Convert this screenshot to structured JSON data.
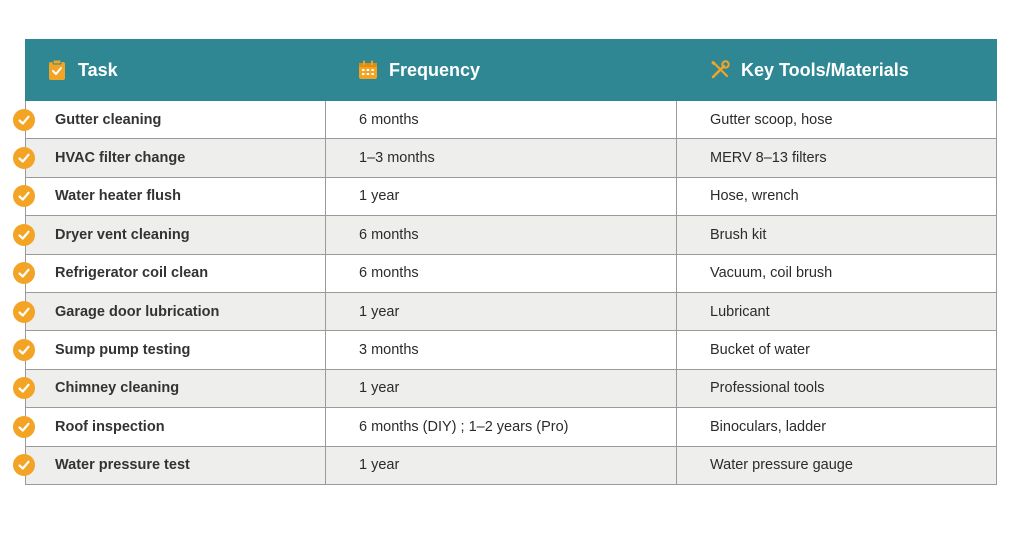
{
  "colors": {
    "header_bg": "#2e8792",
    "accent_orange": "#f4a425",
    "row_alt_bg": "#eeeeec",
    "border": "#9a9a9a"
  },
  "header": {
    "task": {
      "label": "Task",
      "icon": "clipboard-check-icon"
    },
    "frequency": {
      "label": "Frequency",
      "icon": "calendar-icon"
    },
    "tools": {
      "label": "Key Tools/Materials",
      "icon": "tools-icon"
    }
  },
  "rows": [
    {
      "task": "Gutter cleaning",
      "frequency": "6 months",
      "tools": "Gutter scoop, hose"
    },
    {
      "task": "HVAC filter change",
      "frequency": "1–3 months",
      "tools": "MERV 8–13 filters"
    },
    {
      "task": "Water heater flush",
      "frequency": "1 year",
      "tools": "Hose, wrench"
    },
    {
      "task": "Dryer vent cleaning",
      "frequency": "6 months",
      "tools": "Brush kit"
    },
    {
      "task": "Refrigerator coil clean",
      "frequency": "6 months",
      "tools": "Vacuum, coil brush"
    },
    {
      "task": "Garage door lubrication",
      "frequency": "1 year",
      "tools": "Lubricant"
    },
    {
      "task": "Sump pump testing",
      "frequency": "3 months",
      "tools": "Bucket of water"
    },
    {
      "task": "Chimney cleaning",
      "frequency": "1 year",
      "tools": "Professional tools"
    },
    {
      "task": "Roof inspection",
      "frequency": "6 months (DIY) ; 1–2 years (Pro)",
      "tools": "Binoculars, ladder"
    },
    {
      "task": "Water pressure test",
      "frequency": "1 year",
      "tools": "Water pressure gauge"
    }
  ]
}
